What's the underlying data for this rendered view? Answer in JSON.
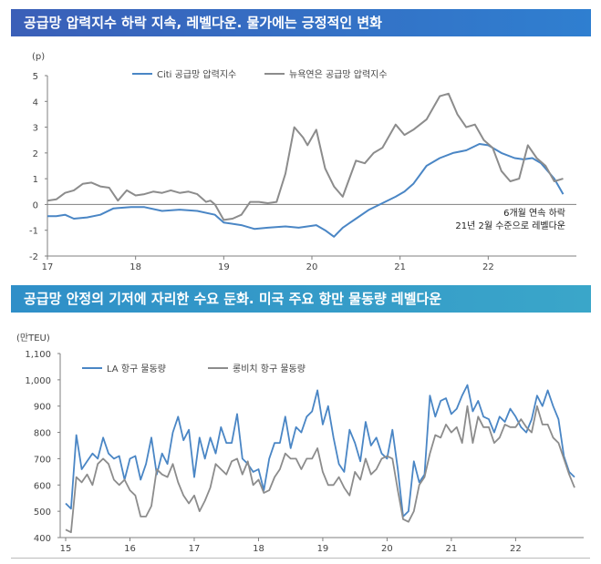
{
  "banner1": "공급망 압력지수 하락 지속, 레벨다운. 물가에는 긍정적인 변화",
  "banner2": "공급망 안정의 기저에 자리한 수요 둔화. 미국 주요 항만 물동량 레벨다운",
  "colors": {
    "blue": "#4a86c5",
    "gray": "#8c8c8c",
    "axis": "#7f7f7f"
  },
  "chart_data": [
    {
      "type": "line",
      "title": "공급망 압력지수 하락 지속, 레벨다운. 물가에는 긍정적인 변화",
      "ylabel": "(p)",
      "ylim": [
        -2,
        5
      ],
      "yticks": [
        -2,
        -1,
        0,
        1,
        2,
        3,
        4,
        5
      ],
      "xlim": [
        2017.0,
        2023.0
      ],
      "xticks": [
        "17",
        "18",
        "19",
        "20",
        "21",
        "22"
      ],
      "annotations": [
        "6개월 연속 하락",
        "21년 2월 수준으로 레벨다운"
      ],
      "series": [
        {
          "name": "Citi 공급망 압력지수",
          "color": "#4a86c5",
          "x": [
            2017.0,
            2017.1,
            2017.2,
            2017.3,
            2017.45,
            2017.6,
            2017.75,
            2017.95,
            2018.1,
            2018.3,
            2018.5,
            2018.7,
            2018.9,
            2019.0,
            2019.2,
            2019.35,
            2019.5,
            2019.7,
            2019.85,
            2019.95,
            2020.05,
            2020.15,
            2020.25,
            2020.35,
            2020.5,
            2020.65,
            2020.8,
            2020.95,
            2021.05,
            2021.15,
            2021.3,
            2021.45,
            2021.6,
            2021.75,
            2021.9,
            2022.0,
            2022.15,
            2022.3,
            2022.4,
            2022.5,
            2022.6,
            2022.75,
            2022.85
          ],
          "values": [
            -0.45,
            -0.45,
            -0.4,
            -0.55,
            -0.5,
            -0.4,
            -0.15,
            -0.1,
            -0.1,
            -0.25,
            -0.2,
            -0.25,
            -0.4,
            -0.7,
            -0.8,
            -0.95,
            -0.9,
            -0.85,
            -0.9,
            -0.85,
            -0.8,
            -1.0,
            -1.25,
            -0.9,
            -0.55,
            -0.2,
            0.05,
            0.3,
            0.5,
            0.8,
            1.5,
            1.8,
            2.0,
            2.1,
            2.35,
            2.3,
            2.0,
            1.8,
            1.75,
            1.8,
            1.6,
            1.0,
            0.4
          ]
        },
        {
          "name": "뉴욕연은 공급망 압력지수",
          "color": "#8c8c8c",
          "x": [
            2017.0,
            2017.1,
            2017.2,
            2017.3,
            2017.4,
            2017.5,
            2017.6,
            2017.7,
            2017.8,
            2017.9,
            2018.0,
            2018.1,
            2018.2,
            2018.3,
            2018.4,
            2018.5,
            2018.6,
            2018.7,
            2018.8,
            2018.85,
            2018.9,
            2019.0,
            2019.1,
            2019.2,
            2019.3,
            2019.4,
            2019.5,
            2019.6,
            2019.7,
            2019.8,
            2019.9,
            2019.95,
            2020.05,
            2020.15,
            2020.25,
            2020.35,
            2020.5,
            2020.6,
            2020.7,
            2020.8,
            2020.95,
            2021.05,
            2021.15,
            2021.3,
            2021.45,
            2021.55,
            2021.65,
            2021.75,
            2021.85,
            2021.95,
            2022.05,
            2022.15,
            2022.25,
            2022.35,
            2022.45,
            2022.55,
            2022.65,
            2022.75,
            2022.85
          ],
          "values": [
            0.15,
            0.2,
            0.45,
            0.55,
            0.8,
            0.85,
            0.7,
            0.65,
            0.15,
            0.55,
            0.35,
            0.4,
            0.5,
            0.45,
            0.55,
            0.45,
            0.5,
            0.4,
            0.1,
            0.15,
            0.0,
            -0.6,
            -0.55,
            -0.4,
            0.1,
            0.1,
            0.05,
            0.1,
            1.2,
            3.0,
            2.6,
            2.3,
            2.9,
            1.4,
            0.7,
            0.3,
            1.7,
            1.6,
            2.0,
            2.2,
            3.1,
            2.7,
            2.9,
            3.3,
            4.2,
            4.3,
            3.5,
            3.0,
            3.1,
            2.5,
            2.2,
            1.3,
            0.9,
            1.0,
            2.3,
            1.8,
            1.5,
            0.9,
            1.0
          ]
        }
      ]
    },
    {
      "type": "line",
      "title": "공급망 안정의 기저에 자리한 수요 둔화. 미국 주요 항만 물동량 레벨다운",
      "ylabel": "(만TEU)",
      "ylim": [
        400,
        1100
      ],
      "yticks": [
        400,
        500,
        600,
        700,
        800,
        900,
        1000,
        1100
      ],
      "ytick_labels": [
        "400",
        "500",
        "600",
        "700",
        "800",
        "900",
        "1,000",
        "1,100"
      ],
      "xlim": [
        2015.0,
        2023.0
      ],
      "xticks": [
        "15",
        "16",
        "17",
        "18",
        "19",
        "20",
        "21",
        "22"
      ],
      "series": [
        {
          "name": "LA 항구 물동량",
          "color": "#4a86c5",
          "values": [
            530,
            510,
            790,
            660,
            690,
            720,
            700,
            780,
            720,
            700,
            710,
            620,
            700,
            710,
            620,
            680,
            780,
            640,
            720,
            680,
            800,
            860,
            770,
            810,
            630,
            780,
            700,
            780,
            720,
            820,
            760,
            760,
            870,
            700,
            680,
            650,
            660,
            580,
            700,
            760,
            760,
            860,
            740,
            820,
            800,
            860,
            880,
            960,
            830,
            900,
            780,
            680,
            650,
            810,
            760,
            690,
            840,
            750,
            780,
            720,
            700,
            810,
            660,
            480,
            500,
            690,
            610,
            640,
            940,
            860,
            920,
            930,
            870,
            890,
            940,
            980,
            880,
            920,
            860,
            850,
            800,
            860,
            840,
            890,
            860,
            820,
            800,
            850,
            940,
            900,
            960,
            900,
            850,
            710,
            650,
            630
          ]
        },
        {
          "name": "롱비치 항구 물동량",
          "color": "#8c8c8c",
          "values": [
            430,
            420,
            630,
            610,
            640,
            600,
            680,
            700,
            680,
            620,
            600,
            620,
            580,
            560,
            480,
            480,
            520,
            660,
            640,
            630,
            680,
            610,
            560,
            530,
            560,
            500,
            540,
            590,
            680,
            660,
            640,
            690,
            700,
            640,
            690,
            600,
            620,
            570,
            580,
            630,
            660,
            720,
            700,
            700,
            660,
            700,
            700,
            740,
            650,
            600,
            600,
            630,
            590,
            560,
            650,
            620,
            700,
            640,
            660,
            700,
            710,
            700,
            580,
            470,
            460,
            500,
            600,
            630,
            720,
            790,
            780,
            830,
            800,
            820,
            760,
            900,
            760,
            860,
            820,
            820,
            760,
            780,
            830,
            820,
            820,
            850,
            820,
            800,
            900,
            830,
            830,
            780,
            760,
            700,
            640,
            590
          ]
        }
      ]
    }
  ]
}
